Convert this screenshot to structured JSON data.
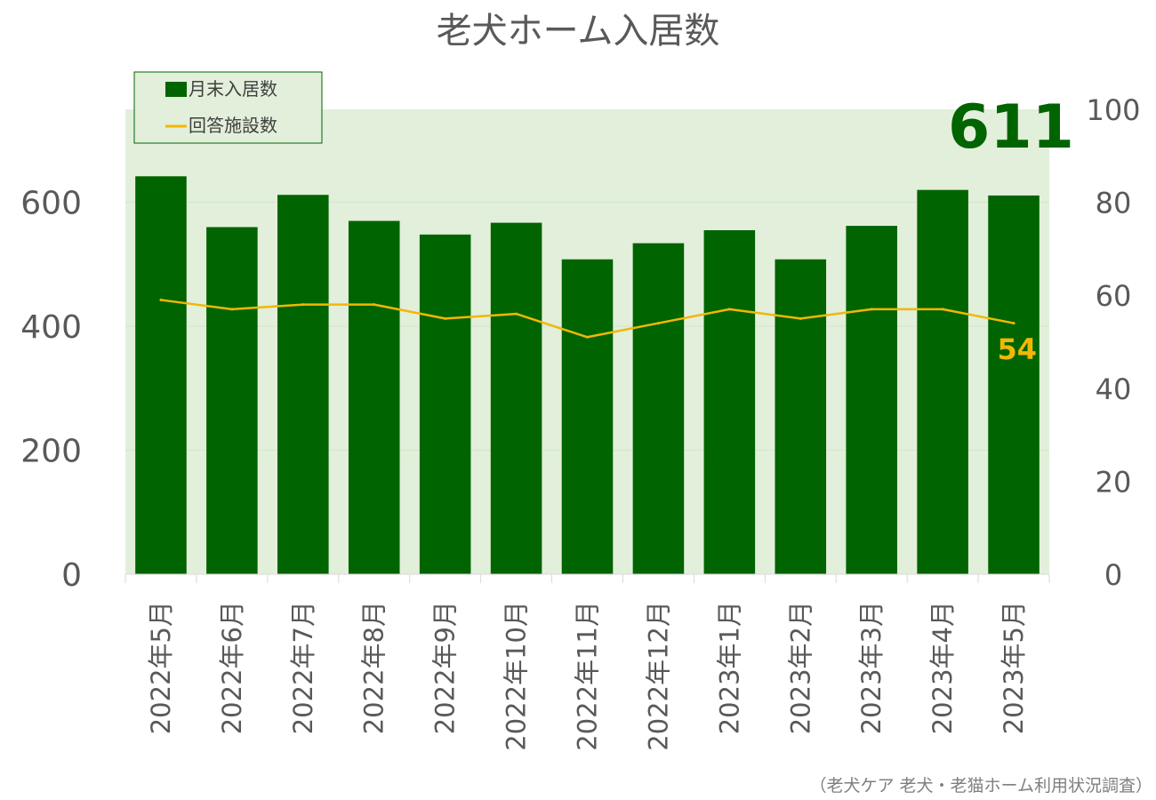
{
  "chart_data": {
    "type": "bar",
    "title": "老犬ホーム入居数",
    "categories": [
      "2022年5月",
      "2022年6月",
      "2022年7月",
      "2022年8月",
      "2022年9月",
      "2022年10月",
      "2022年11月",
      "2022年12月",
      "2023年1月",
      "2023年2月",
      "2023年3月",
      "2023年4月",
      "2023年5月"
    ],
    "series": [
      {
        "name": "月末入居数",
        "type": "bar",
        "axis": "left",
        "color": "#006400",
        "values": [
          642,
          560,
          612,
          570,
          548,
          567,
          508,
          534,
          555,
          508,
          562,
          620,
          611
        ]
      },
      {
        "name": "回答施設数",
        "type": "line",
        "axis": "right",
        "color": "#f2b705",
        "values": [
          59,
          57,
          58,
          58,
          55,
          56,
          51,
          54,
          57,
          55,
          57,
          57,
          54
        ]
      }
    ],
    "ylim": [
      0,
      750
    ],
    "yticks": [
      "0",
      "200",
      "400",
      "600"
    ],
    "y2lim": [
      0,
      100
    ],
    "y2ticks": [
      "0",
      "20",
      "40",
      "60",
      "80",
      "100"
    ],
    "grid": true,
    "legend_position": "top-left",
    "highlight_bar_label": "611",
    "highlight_line_label": "54",
    "plot_background": "#e2efda"
  },
  "source_note": "（老犬ケア 老犬・老猫ホーム利用状況調査）"
}
